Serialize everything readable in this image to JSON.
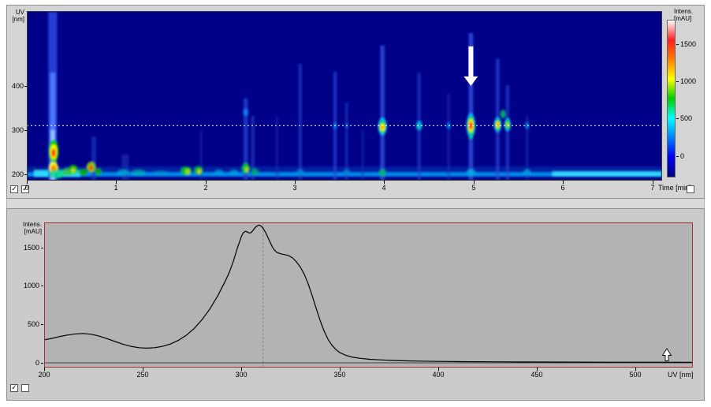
{
  "window": {
    "background": "#ffffff"
  },
  "icons": {
    "checkmark": "✓"
  },
  "top_panel": {
    "y_axis": {
      "label_line1": "UV",
      "label_line2": "[nm]"
    },
    "x_axis": {
      "label": "Time [min]"
    },
    "colorbar_label": {
      "line1": "Intens.",
      "line2": "[mAU]"
    },
    "checkboxes": [
      {
        "checked": true
      },
      {
        "checked": true
      },
      {
        "checked": false
      }
    ]
  },
  "bottom_panel": {
    "y_axis": {
      "label_line1": "Intens.",
      "label_line2": "[mAU]"
    },
    "x_axis": {
      "label": "UV [nm]"
    },
    "checkboxes": [
      {
        "checked": true
      },
      {
        "checked": false
      }
    ]
  },
  "chart_data": [
    {
      "type": "heatmap",
      "xlabel": "Time [min]",
      "ylabel": "UV [nm]",
      "colorbar_label": "Intens. [mAU]",
      "x_range": [
        0,
        7.11
      ],
      "y_range": [
        185,
        570
      ],
      "x_ticks": [
        0,
        1,
        2,
        3,
        4,
        5,
        6,
        7
      ],
      "y_ticks": [
        200,
        300,
        400
      ],
      "background_color": "#000088",
      "marker_line_nm": 310,
      "marker_line_color": "#ffffff",
      "arrow_annotation": {
        "t": 4.97,
        "from_nm": 490,
        "to_nm": 400,
        "color": "#ffffff"
      },
      "colorbar": {
        "ticks": [
          1500,
          1000,
          500,
          0
        ],
        "range": [
          -290,
          1830
        ],
        "colors": [
          "#ffffff",
          "#ff2020",
          "#ff8000",
          "#ffff00",
          "#00cc00",
          "#00ffff",
          "#0080ff",
          "#0000ee",
          "#000080"
        ]
      },
      "bands": [
        {
          "t_from": 0.0,
          "t_to": 7.11,
          "nm": 206,
          "half_nm": 11,
          "color": "#0038b8",
          "opacity": 0.55
        },
        {
          "t_from": 0.0,
          "t_to": 7.11,
          "nm": 199,
          "half_nm": 5,
          "color": "#00a4ff",
          "opacity": 0.8
        },
        {
          "t_from": 0.08,
          "t_to": 0.6,
          "nm": 201,
          "half_nm": 8,
          "color": "#34e2ff",
          "opacity": 0.9
        },
        {
          "t_from": 5.88,
          "t_to": 7.11,
          "nm": 200,
          "half_nm": 6,
          "color": "#34deff",
          "opacity": 0.9
        }
      ],
      "streaks": [
        {
          "t": 0.29,
          "nm_from": 186,
          "nm_to": 568,
          "w": 0.1,
          "color": "#2a42dc",
          "opacity": 0.9
        },
        {
          "t": 0.29,
          "nm_from": 186,
          "nm_to": 430,
          "w": 0.06,
          "color": "#4f7dff",
          "opacity": 0.9
        },
        {
          "t": 0.29,
          "nm_from": 186,
          "nm_to": 300,
          "w": 0.045,
          "color": "#8fc8ff",
          "opacity": 0.95
        },
        {
          "t": 0.75,
          "nm_from": 186,
          "nm_to": 285,
          "w": 0.05,
          "color": "#2038c0",
          "opacity": 0.7
        },
        {
          "t": 1.1,
          "nm_from": 186,
          "nm_to": 245,
          "w": 0.08,
          "color": "#1a30b8",
          "opacity": 0.6
        },
        {
          "t": 1.95,
          "nm_from": 186,
          "nm_to": 300,
          "w": 0.03,
          "color": "#1c34bc",
          "opacity": 0.45
        },
        {
          "t": 2.45,
          "nm_from": 186,
          "nm_to": 372,
          "w": 0.05,
          "color": "#2340cc",
          "opacity": 0.8
        },
        {
          "t": 2.53,
          "nm_from": 186,
          "nm_to": 332,
          "w": 0.04,
          "color": "#2340cc",
          "opacity": 0.6
        },
        {
          "t": 2.8,
          "nm_from": 186,
          "nm_to": 330,
          "w": 0.03,
          "color": "#1a30b2",
          "opacity": 0.5
        },
        {
          "t": 3.06,
          "nm_from": 186,
          "nm_to": 450,
          "w": 0.04,
          "color": "#2340cc",
          "opacity": 0.6
        },
        {
          "t": 3.45,
          "nm_from": 186,
          "nm_to": 432,
          "w": 0.04,
          "color": "#2744d4",
          "opacity": 0.7
        },
        {
          "t": 3.58,
          "nm_from": 186,
          "nm_to": 362,
          "w": 0.035,
          "color": "#2038c4",
          "opacity": 0.6
        },
        {
          "t": 3.76,
          "nm_from": 186,
          "nm_to": 300,
          "w": 0.03,
          "color": "#1a30b2",
          "opacity": 0.5
        },
        {
          "t": 3.98,
          "nm_from": 186,
          "nm_to": 492,
          "w": 0.05,
          "color": "#2e4cdc",
          "opacity": 0.8
        },
        {
          "t": 4.39,
          "nm_from": 186,
          "nm_to": 430,
          "w": 0.04,
          "color": "#2340cc",
          "opacity": 0.6
        },
        {
          "t": 4.72,
          "nm_from": 186,
          "nm_to": 382,
          "w": 0.03,
          "color": "#1e36bc",
          "opacity": 0.5
        },
        {
          "t": 4.97,
          "nm_from": 186,
          "nm_to": 520,
          "w": 0.05,
          "color": "#2e4cdc",
          "opacity": 0.85
        },
        {
          "t": 5.27,
          "nm_from": 186,
          "nm_to": 462,
          "w": 0.04,
          "color": "#2a46d4",
          "opacity": 0.7
        },
        {
          "t": 5.38,
          "nm_from": 186,
          "nm_to": 402,
          "w": 0.04,
          "color": "#2a46d4",
          "opacity": 0.6
        },
        {
          "t": 5.6,
          "nm_from": 186,
          "nm_to": 332,
          "w": 0.03,
          "color": "#1e36bc",
          "opacity": 0.5
        }
      ],
      "blobs": [
        {
          "t": 0.3,
          "nm": 252,
          "rt": 0.055,
          "rnm": 26,
          "color": "#00cc00",
          "op": 0.95
        },
        {
          "t": 0.3,
          "nm": 250,
          "rt": 0.04,
          "rnm": 17,
          "color": "#ffff00",
          "op": 0.95
        },
        {
          "t": 0.3,
          "nm": 248,
          "rt": 0.025,
          "rnm": 10,
          "color": "#ff3000",
          "op": 0.95
        },
        {
          "t": 0.3,
          "nm": 214,
          "rt": 0.05,
          "rnm": 13,
          "color": "#ffff00",
          "op": 0.9
        },
        {
          "t": 0.3,
          "nm": 212,
          "rt": 0.03,
          "rnm": 8,
          "color": "#ff7800",
          "op": 0.9
        },
        {
          "t": 0.34,
          "nm": 200,
          "rt": 0.09,
          "rnm": 10,
          "color": "#00dc86",
          "op": 0.8
        },
        {
          "t": 0.46,
          "nm": 205,
          "rt": 0.06,
          "rnm": 9,
          "color": "#38c43c",
          "op": 0.8
        },
        {
          "t": 0.52,
          "nm": 210,
          "rt": 0.05,
          "rnm": 11,
          "color": "#00c000",
          "op": 0.9
        },
        {
          "t": 0.52,
          "nm": 208,
          "rt": 0.025,
          "rnm": 6,
          "color": "#c2e23c",
          "op": 0.9
        },
        {
          "t": 0.63,
          "nm": 204,
          "rt": 0.05,
          "rnm": 8,
          "color": "#00b400",
          "op": 0.85
        },
        {
          "t": 0.72,
          "nm": 216,
          "rt": 0.05,
          "rnm": 12,
          "color": "#8cd400",
          "op": 0.9
        },
        {
          "t": 0.72,
          "nm": 214,
          "rt": 0.022,
          "rnm": 6,
          "color": "#ff4600",
          "op": 0.9
        },
        {
          "t": 0.8,
          "nm": 205,
          "rt": 0.04,
          "rnm": 8,
          "color": "#00ba00",
          "op": 0.8
        },
        {
          "t": 1.08,
          "nm": 203,
          "rt": 0.07,
          "rnm": 7,
          "color": "#00aad2",
          "op": 0.8
        },
        {
          "t": 1.25,
          "nm": 203,
          "rt": 0.08,
          "rnm": 7,
          "color": "#00b4b4",
          "op": 0.7
        },
        {
          "t": 1.5,
          "nm": 202,
          "rt": 0.1,
          "rnm": 6,
          "color": "#0092d2",
          "op": 0.6
        },
        {
          "t": 1.78,
          "nm": 207,
          "rt": 0.06,
          "rnm": 10,
          "color": "#00c232",
          "op": 0.9
        },
        {
          "t": 1.8,
          "nm": 205,
          "rt": 0.03,
          "rnm": 6,
          "color": "#a2e200",
          "op": 0.9
        },
        {
          "t": 1.92,
          "nm": 208,
          "rt": 0.05,
          "rnm": 10,
          "color": "#00c232",
          "op": 0.85
        },
        {
          "t": 1.93,
          "nm": 206,
          "rt": 0.022,
          "rnm": 5,
          "color": "#e2e200",
          "op": 0.85
        },
        {
          "t": 2.15,
          "nm": 203,
          "rt": 0.05,
          "rnm": 7,
          "color": "#00a2e2",
          "op": 0.7
        },
        {
          "t": 2.32,
          "nm": 203,
          "rt": 0.05,
          "rnm": 7,
          "color": "#00a2e2",
          "op": 0.7
        },
        {
          "t": 2.45,
          "nm": 213,
          "rt": 0.045,
          "rnm": 12,
          "color": "#00c240",
          "op": 0.9
        },
        {
          "t": 2.46,
          "nm": 210,
          "rt": 0.022,
          "rnm": 6,
          "color": "#b2e200",
          "op": 0.85
        },
        {
          "t": 2.45,
          "nm": 340,
          "rt": 0.03,
          "rnm": 9,
          "color": "#0092ff",
          "op": 0.7
        },
        {
          "t": 2.55,
          "nm": 205,
          "rt": 0.04,
          "rnm": 8,
          "color": "#00b464",
          "op": 0.8
        },
        {
          "t": 3.06,
          "nm": 204,
          "rt": 0.04,
          "rnm": 7,
          "color": "#009ae2",
          "op": 0.7
        },
        {
          "t": 3.45,
          "nm": 310,
          "rt": 0.025,
          "rnm": 8,
          "color": "#0082ff",
          "op": 0.7
        },
        {
          "t": 3.58,
          "nm": 204,
          "rt": 0.04,
          "rnm": 7,
          "color": "#009ae2",
          "op": 0.6
        },
        {
          "t": 3.58,
          "nm": 310,
          "rt": 0.02,
          "rnm": 6,
          "color": "#0072f2",
          "op": 0.6
        },
        {
          "t": 3.98,
          "nm": 308,
          "rt": 0.05,
          "rnm": 20,
          "color": "#00caff",
          "op": 0.9
        },
        {
          "t": 3.98,
          "nm": 307,
          "rt": 0.038,
          "rnm": 14,
          "color": "#00cc00",
          "op": 0.95
        },
        {
          "t": 3.98,
          "nm": 306,
          "rt": 0.028,
          "rnm": 9,
          "color": "#ffff00",
          "op": 0.95
        },
        {
          "t": 3.98,
          "nm": 306,
          "rt": 0.016,
          "rnm": 4,
          "color": "#ff8200",
          "op": 0.9
        },
        {
          "t": 3.98,
          "nm": 203,
          "rt": 0.04,
          "rnm": 8,
          "color": "#00c264",
          "op": 0.85
        },
        {
          "t": 4.39,
          "nm": 310,
          "rt": 0.035,
          "rnm": 11,
          "color": "#00b2ff",
          "op": 0.85
        },
        {
          "t": 4.39,
          "nm": 309,
          "rt": 0.02,
          "rnm": 6,
          "color": "#00d284",
          "op": 0.85
        },
        {
          "t": 4.72,
          "nm": 310,
          "rt": 0.025,
          "rnm": 8,
          "color": "#0092ff",
          "op": 0.7
        },
        {
          "t": 4.97,
          "nm": 310,
          "rt": 0.05,
          "rnm": 28,
          "color": "#00c2ff",
          "op": 0.95
        },
        {
          "t": 4.97,
          "nm": 310,
          "rt": 0.04,
          "rnm": 21,
          "color": "#00cc00",
          "op": 0.95
        },
        {
          "t": 4.97,
          "nm": 310,
          "rt": 0.03,
          "rnm": 15,
          "color": "#ffff00",
          "op": 0.95
        },
        {
          "t": 4.97,
          "nm": 310,
          "rt": 0.022,
          "rnm": 10,
          "color": "#ff8200",
          "op": 0.95
        },
        {
          "t": 4.97,
          "nm": 310,
          "rt": 0.014,
          "rnm": 6,
          "color": "#ff0000",
          "op": 0.95
        },
        {
          "t": 4.97,
          "nm": 287,
          "rt": 0.026,
          "rnm": 8,
          "color": "#00d2a2",
          "op": 0.8
        },
        {
          "t": 4.97,
          "nm": 203,
          "rt": 0.05,
          "rnm": 8,
          "color": "#00b2e2",
          "op": 0.8
        },
        {
          "t": 5.27,
          "nm": 312,
          "rt": 0.042,
          "rnm": 17,
          "color": "#00c2ff",
          "op": 0.9
        },
        {
          "t": 5.27,
          "nm": 312,
          "rt": 0.032,
          "rnm": 12,
          "color": "#00cc00",
          "op": 0.95
        },
        {
          "t": 5.27,
          "nm": 312,
          "rt": 0.021,
          "rnm": 8,
          "color": "#ffff00",
          "op": 0.95
        },
        {
          "t": 5.27,
          "nm": 312,
          "rt": 0.012,
          "rnm": 4,
          "color": "#ff7200",
          "op": 0.9
        },
        {
          "t": 5.38,
          "nm": 312,
          "rt": 0.038,
          "rnm": 15,
          "color": "#00c2ff",
          "op": 0.9
        },
        {
          "t": 5.38,
          "nm": 312,
          "rt": 0.027,
          "rnm": 10,
          "color": "#00cc00",
          "op": 0.9
        },
        {
          "t": 5.38,
          "nm": 312,
          "rt": 0.015,
          "rnm": 5,
          "color": "#d2e200",
          "op": 0.9
        },
        {
          "t": 5.33,
          "nm": 336,
          "rt": 0.028,
          "rnm": 10,
          "color": "#00c264",
          "op": 0.85
        },
        {
          "t": 5.6,
          "nm": 310,
          "rt": 0.025,
          "rnm": 8,
          "color": "#009aff",
          "op": 0.7
        },
        {
          "t": 5.6,
          "nm": 204,
          "rt": 0.04,
          "rnm": 7,
          "color": "#00b2e2",
          "op": 0.7
        }
      ]
    },
    {
      "type": "line",
      "xlabel": "UV [nm]",
      "ylabel": "Intens. [mAU]",
      "x_range": [
        200,
        529
      ],
      "y_range": [
        -61,
        1823
      ],
      "x_ticks": [
        200,
        250,
        300,
        350,
        400,
        450,
        500
      ],
      "y_ticks": [
        0,
        500,
        1000,
        1500
      ],
      "background_color": "#b3b3b3",
      "border_color": "#a03434",
      "line_color": "#000000",
      "cursor_line_nm": 311,
      "points": [
        [
          200,
          298
        ],
        [
          204,
          318
        ],
        [
          208,
          342
        ],
        [
          212,
          362
        ],
        [
          216,
          376
        ],
        [
          220,
          381
        ],
        [
          224,
          371
        ],
        [
          228,
          347
        ],
        [
          232,
          314
        ],
        [
          236,
          277
        ],
        [
          240,
          242
        ],
        [
          244,
          214
        ],
        [
          248,
          197
        ],
        [
          252,
          191
        ],
        [
          256,
          197
        ],
        [
          260,
          214
        ],
        [
          264,
          244
        ],
        [
          268,
          291
        ],
        [
          272,
          357
        ],
        [
          276,
          444
        ],
        [
          280,
          558
        ],
        [
          284,
          698
        ],
        [
          288,
          868
        ],
        [
          292,
          1068
        ],
        [
          294,
          1180
        ],
        [
          296,
          1320
        ],
        [
          298,
          1490
        ],
        [
          300,
          1640
        ],
        [
          301,
          1690
        ],
        [
          302,
          1708
        ],
        [
          303,
          1700
        ],
        [
          304,
          1685
        ],
        [
          305,
          1692
        ],
        [
          306,
          1722
        ],
        [
          307,
          1756
        ],
        [
          308,
          1779
        ],
        [
          309,
          1788
        ],
        [
          310,
          1778
        ],
        [
          311,
          1748
        ],
        [
          312,
          1706
        ],
        [
          313,
          1655
        ],
        [
          314,
          1598
        ],
        [
          315,
          1542
        ],
        [
          316,
          1492
        ],
        [
          317,
          1458
        ],
        [
          318,
          1434
        ],
        [
          320,
          1415
        ],
        [
          322,
          1405
        ],
        [
          324,
          1392
        ],
        [
          326,
          1362
        ],
        [
          328,
          1310
        ],
        [
          330,
          1240
        ],
        [
          332,
          1145
        ],
        [
          334,
          1020
        ],
        [
          336,
          868
        ],
        [
          338,
          705
        ],
        [
          340,
          548
        ],
        [
          342,
          412
        ],
        [
          344,
          305
        ],
        [
          346,
          228
        ],
        [
          348,
          172
        ],
        [
          350,
          133
        ],
        [
          353,
          98
        ],
        [
          356,
          76
        ],
        [
          360,
          60
        ],
        [
          365,
          47
        ],
        [
          370,
          39
        ],
        [
          376,
          32
        ],
        [
          382,
          27
        ],
        [
          390,
          23
        ],
        [
          400,
          19
        ],
        [
          412,
          16
        ],
        [
          425,
          14
        ],
        [
          440,
          12
        ],
        [
          455,
          11
        ],
        [
          470,
          10
        ],
        [
          490,
          9
        ],
        [
          510,
          9
        ],
        [
          529,
          8
        ]
      ]
    }
  ]
}
